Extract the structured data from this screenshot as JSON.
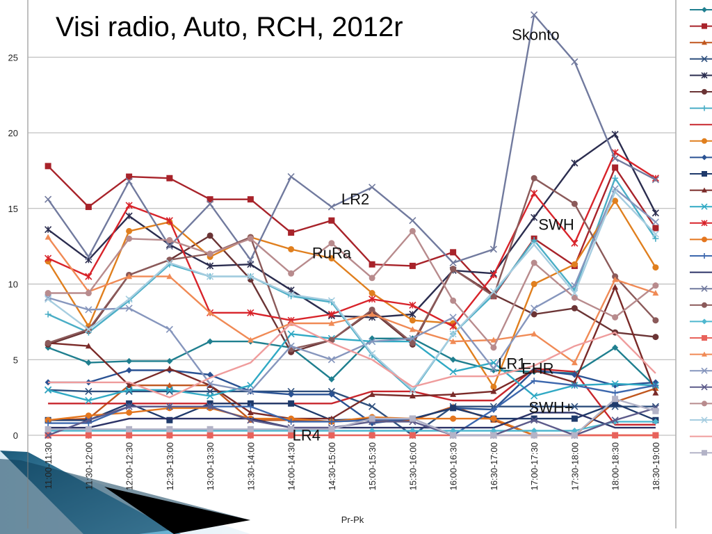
{
  "chart_data": {
    "type": "line",
    "title": "Visi radio, Auto, RCH, 2012r",
    "xlabel": "Pr-Pk",
    "ylabel": "",
    "ylim": [
      0,
      28
    ],
    "yticks": [
      0,
      5,
      10,
      15,
      20,
      25
    ],
    "grid": true,
    "legend_position": "right",
    "categories": [
      "11:00-11:30",
      "11:30-12:00",
      "12:00-12:30",
      "12:30-13:00",
      "13:00-13:30",
      "13:30-14:00",
      "14:00-14:30",
      "14:30-15:00",
      "15:00-15:30",
      "15:30-16:00",
      "16:00-16:30",
      "16:30-17:00",
      "17:00-17:30",
      "17:30-18:00",
      "18:00-18:30",
      "18:30-19:00"
    ],
    "annotations": [
      {
        "text": "Skonto",
        "series": 17,
        "index": 12
      },
      {
        "text": "SWH",
        "series": 4,
        "index": 13
      },
      {
        "text": "EHR",
        "series": 7,
        "index": 12
      },
      {
        "text": "LR2",
        "series": 1,
        "index": 7
      },
      {
        "text": "RuRa",
        "series": 8,
        "index": 7
      },
      {
        "text": "SWH+",
        "series": 3,
        "index": 13
      },
      {
        "text": "LR1",
        "series": 0,
        "index": 12
      },
      {
        "text": "LR4",
        "series": 9,
        "index": 6
      }
    ],
    "series": [
      {
        "color": "#1f7f8f",
        "marker": "diamond",
        "values": [
          5.8,
          4.8,
          4.9,
          4.9,
          6.2,
          6.2,
          5.8,
          3.7,
          6.4,
          6.4,
          5.0,
          4.3,
          4.2,
          4.1,
          5.8,
          3.2
        ]
      },
      {
        "color": "#a8232a",
        "marker": "square",
        "values": [
          17.8,
          15.1,
          17.1,
          17.0,
          15.6,
          15.6,
          13.4,
          14.2,
          11.3,
          11.2,
          12.1,
          9.2,
          13.0,
          11.2,
          17.7,
          13.7
        ]
      },
      {
        "color": "#c0561d",
        "marker": "triangle",
        "values": [
          1.0,
          1.1,
          3.3,
          3.3,
          3.3,
          1.0,
          1.0,
          0.9,
          1.0,
          1.0,
          1.9,
          1.0,
          0.0,
          0.0,
          2.2,
          3.1
        ]
      },
      {
        "color": "#2e4f7d",
        "marker": "x",
        "values": [
          3.0,
          2.9,
          2.9,
          2.9,
          2.9,
          2.9,
          2.9,
          2.9,
          1.9,
          0.0,
          1.9,
          1.9,
          1.9,
          1.9,
          1.9,
          1.9
        ]
      },
      {
        "color": "#2b2d4f",
        "marker": "star",
        "values": [
          13.6,
          11.6,
          14.5,
          12.6,
          11.2,
          11.3,
          9.6,
          7.9,
          7.8,
          8.0,
          10.9,
          10.7,
          14.4,
          18.0,
          19.9,
          14.7
        ]
      },
      {
        "color": "#6b3435",
        "marker": "circle",
        "values": [
          6.0,
          6.9,
          10.6,
          11.6,
          13.2,
          10.3,
          5.5,
          6.3,
          8.2,
          6.0,
          11.0,
          9.3,
          8.0,
          8.4,
          6.8,
          6.5
        ]
      },
      {
        "color": "#4aaec6",
        "marker": "plus",
        "values": [
          8.0,
          6.8,
          8.9,
          11.3,
          10.5,
          10.5,
          9.2,
          8.8,
          5.3,
          2.9,
          6.7,
          9.3,
          12.9,
          9.6,
          17.0,
          13.0
        ]
      },
      {
        "color": "#c7262d",
        "marker": "none",
        "values": [
          2.1,
          2.1,
          2.1,
          2.1,
          2.1,
          2.1,
          2.1,
          2.1,
          2.9,
          2.9,
          2.3,
          2.3,
          4.4,
          4.2,
          0.7,
          0.7
        ]
      },
      {
        "color": "#e07f1e",
        "marker": "circle",
        "values": [
          11.5,
          7.2,
          13.5,
          14.1,
          11.8,
          13.1,
          12.3,
          11.7,
          9.4,
          7.6,
          7.4,
          3.2,
          10.0,
          11.3,
          15.5,
          11.1
        ]
      },
      {
        "color": "#2a5293",
        "marker": "diamond",
        "values": [
          3.5,
          3.5,
          4.3,
          4.3,
          4.0,
          2.9,
          2.7,
          2.7,
          0.8,
          1.1,
          1.8,
          1.7,
          4.3,
          4.0,
          3.3,
          3.5
        ]
      },
      {
        "color": "#1f3a6b",
        "marker": "square",
        "values": [
          1.0,
          1.0,
          2.1,
          1.0,
          2.1,
          2.1,
          2.1,
          1.0,
          1.1,
          1.1,
          1.8,
          1.1,
          1.1,
          1.1,
          2.1,
          1.0
        ]
      },
      {
        "color": "#7a2a28",
        "marker": "triangle",
        "values": [
          6.1,
          5.9,
          3.3,
          4.4,
          3.3,
          1.5,
          1.1,
          1.1,
          2.7,
          2.6,
          2.7,
          2.9,
          4.3,
          3.5,
          9.8,
          2.8
        ]
      },
      {
        "color": "#30a9c4",
        "marker": "x",
        "values": [
          3.0,
          2.3,
          3.0,
          3.0,
          2.6,
          3.3,
          6.7,
          6.4,
          6.2,
          6.2,
          4.2,
          4.8,
          2.6,
          3.3,
          3.4,
          3.3
        ]
      },
      {
        "color": "#d8232a",
        "marker": "star",
        "values": [
          11.7,
          10.5,
          15.2,
          14.2,
          8.1,
          8.1,
          7.6,
          8.0,
          9.0,
          8.6,
          7.2,
          10.6,
          16.0,
          12.7,
          18.7,
          17.0
        ]
      },
      {
        "color": "#e4761e",
        "marker": "circle",
        "values": [
          1.0,
          1.3,
          1.5,
          1.8,
          1.8,
          1.1,
          1.1,
          0.9,
          1.2,
          1.1,
          1.1,
          1.1,
          0.0,
          0.0,
          0.0,
          0.0
        ]
      },
      {
        "color": "#3c67ad",
        "marker": "plus",
        "values": [
          0.8,
          0.8,
          1.9,
          1.9,
          1.9,
          1.9,
          0.9,
          0.9,
          1.0,
          1.1,
          0.0,
          1.7,
          3.6,
          3.3,
          2.8,
          3.3
        ]
      },
      {
        "color": "#2c3367",
        "marker": "none",
        "values": [
          0.5,
          0.5,
          1.1,
          1.1,
          1.1,
          1.1,
          0.5,
          0.5,
          0.5,
          0.5,
          0.5,
          0.5,
          1.5,
          1.5,
          0.5,
          0.5
        ]
      },
      {
        "color": "#717a9e",
        "marker": "x",
        "values": [
          15.6,
          11.8,
          16.8,
          12.5,
          15.3,
          11.6,
          17.1,
          15.1,
          16.4,
          14.2,
          11.4,
          12.3,
          27.8,
          24.7,
          18.3,
          16.9
        ]
      },
      {
        "color": "#8b5a5a",
        "marker": "circle",
        "values": [
          6.1,
          7.0,
          10.6,
          11.6,
          12.0,
          13.1,
          5.7,
          6.3,
          8.3,
          6.1,
          11.0,
          9.2,
          17.0,
          15.3,
          10.5,
          7.6
        ]
      },
      {
        "color": "#4fb7cf",
        "marker": "diamond",
        "values": [
          0.3,
          0.3,
          0.3,
          0.3,
          0.3,
          0.3,
          0.3,
          0.3,
          0.3,
          0.3,
          0.3,
          0.3,
          0.3,
          0.3,
          0.9,
          0.9
        ]
      },
      {
        "color": "#e8625b",
        "marker": "square",
        "values": [
          0.0,
          0.0,
          0.0,
          0.0,
          0.0,
          0.0,
          0.0,
          0.0,
          0.0,
          0.0,
          0.0,
          0.0,
          0.0,
          0.0,
          0.0,
          0.0
        ]
      },
      {
        "color": "#f08a55",
        "marker": "triangle",
        "values": [
          13.1,
          9.5,
          10.5,
          10.5,
          8.1,
          6.3,
          7.4,
          7.4,
          8.0,
          7.0,
          6.2,
          6.3,
          6.7,
          4.8,
          10.3,
          9.4
        ]
      },
      {
        "color": "#8696bd",
        "marker": "x",
        "values": [
          9.1,
          8.3,
          8.4,
          7.0,
          3.4,
          2.9,
          5.9,
          5.0,
          6.2,
          6.4,
          7.8,
          4.4,
          8.4,
          9.9,
          16.3,
          14.1
        ]
      },
      {
        "color": "#5c5a8a",
        "marker": "x",
        "values": [
          0.0,
          1.0,
          1.9,
          1.9,
          1.9,
          1.0,
          0.5,
          0.5,
          0.9,
          0.9,
          0.0,
          0.0,
          1.0,
          0.0,
          1.0,
          1.8
        ]
      },
      {
        "color": "#b88b8d",
        "marker": "circle",
        "values": [
          9.4,
          9.4,
          13.0,
          12.9,
          12.0,
          13.0,
          10.7,
          12.7,
          10.4,
          13.5,
          8.9,
          5.8,
          11.4,
          9.1,
          7.8,
          9.9
        ]
      },
      {
        "color": "#a6cde0",
        "marker": "x",
        "values": [
          9.0,
          7.0,
          9.0,
          11.4,
          10.5,
          10.5,
          9.3,
          8.9,
          5.4,
          3.0,
          6.7,
          9.5,
          12.6,
          9.4,
          16.1,
          13.3
        ]
      },
      {
        "color": "#ef9c9c",
        "marker": "none",
        "values": [
          3.5,
          3.5,
          3.5,
          2.5,
          3.8,
          4.8,
          7.4,
          6.1,
          5.0,
          3.2,
          3.9,
          3.9,
          4.6,
          5.9,
          6.8,
          4.1
        ]
      },
      {
        "color": "#b3b3c7",
        "marker": "square",
        "values": [
          0.4,
          0.4,
          0.4,
          0.4,
          0.4,
          0.4,
          0.4,
          0.4,
          1.1,
          1.1,
          0.0,
          0.0,
          0.0,
          0.0,
          2.4,
          1.6
        ]
      }
    ]
  }
}
